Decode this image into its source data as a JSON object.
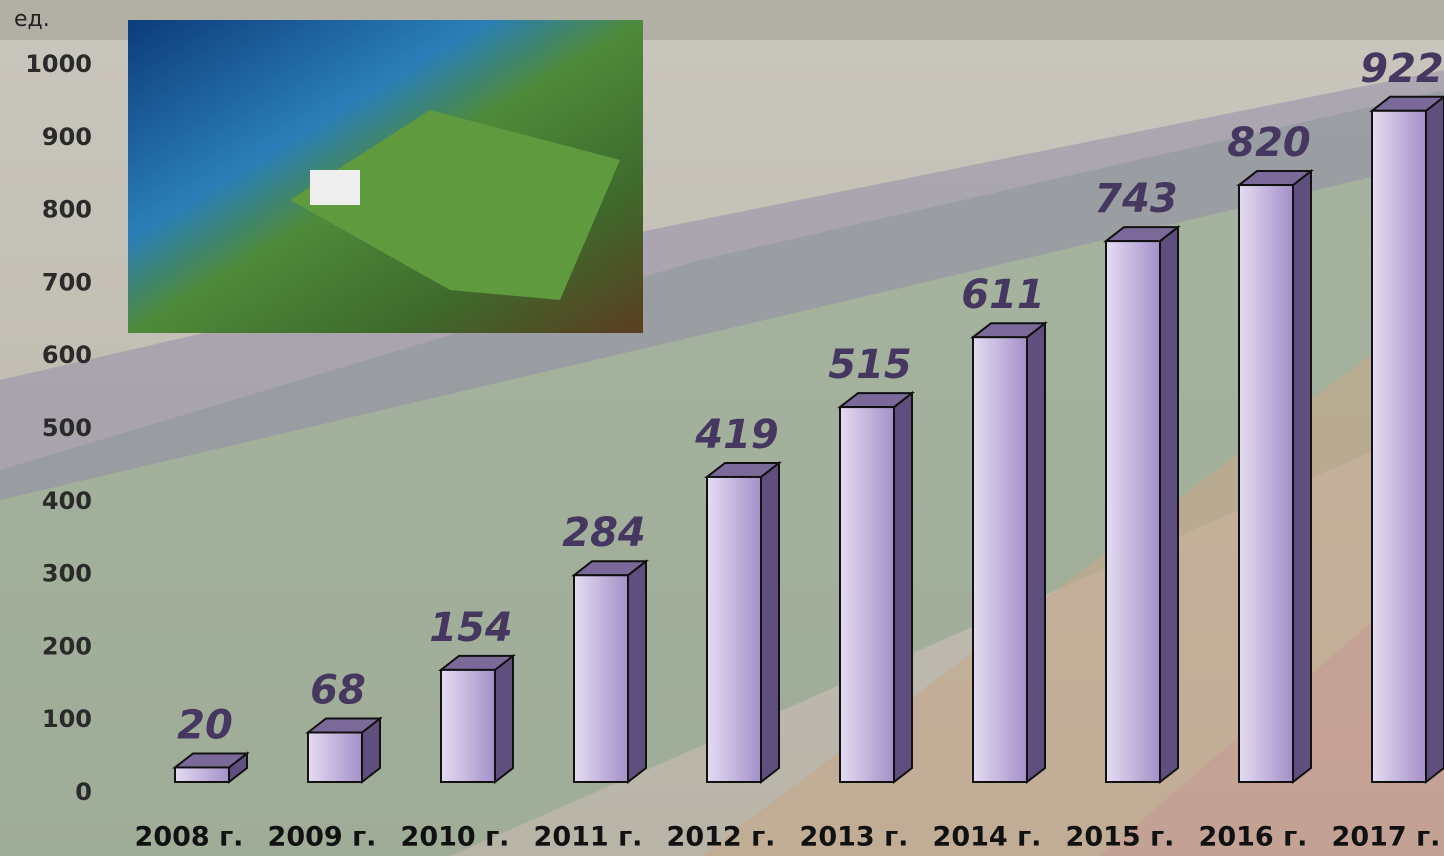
{
  "chart_data": {
    "type": "bar3d",
    "y_label": "ед.",
    "categories": [
      "2008 г.",
      "2009 г.",
      "2010 г.",
      "2011 г.",
      "2012 г.",
      "2013 г.",
      "2014 г.",
      "2015 г.",
      "2016 г.",
      "2017 г."
    ],
    "values": [
      20,
      68,
      154,
      284,
      419,
      515,
      611,
      743,
      820,
      922
    ],
    "color": "#b7a6d6",
    "ylim": [
      0,
      1000
    ],
    "yticks": [
      0,
      100,
      200,
      300,
      400,
      500,
      600,
      700,
      800,
      900,
      1000
    ]
  }
}
